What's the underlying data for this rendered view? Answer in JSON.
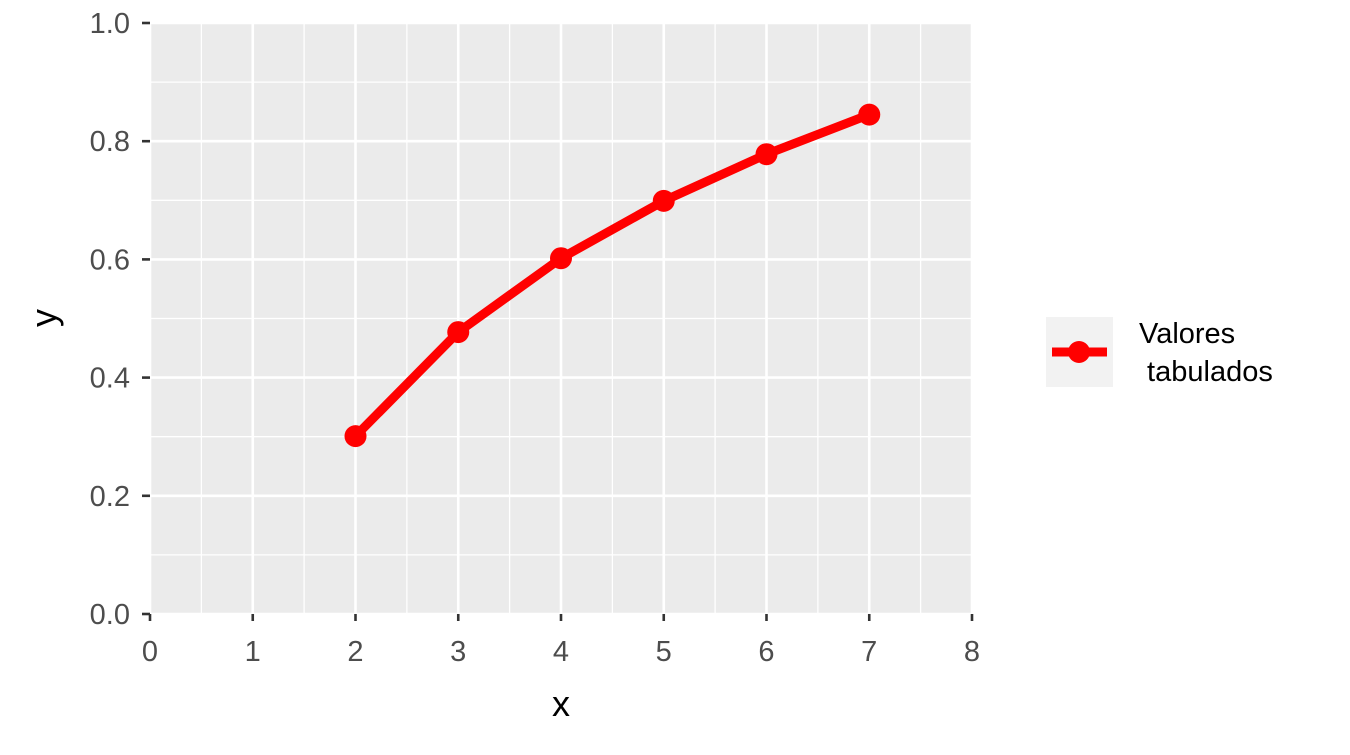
{
  "chart_data": {
    "type": "line",
    "xlabel": "x",
    "ylabel": "y",
    "xlim": [
      0,
      8
    ],
    "ylim": [
      0,
      1
    ],
    "x_ticks": [
      0,
      1,
      2,
      3,
      4,
      5,
      6,
      7,
      8
    ],
    "y_ticks": [
      0.0,
      0.2,
      0.4,
      0.6,
      0.8,
      1.0
    ],
    "x_tick_labels": [
      "0",
      "1",
      "2",
      "3",
      "4",
      "5",
      "6",
      "7",
      "8"
    ],
    "y_tick_labels": [
      "0.0",
      "0.2",
      "0.4",
      "0.6",
      "0.8",
      "1.0"
    ],
    "grid": true,
    "legend_position": "right",
    "series": [
      {
        "name": "Valores\n tabulados",
        "color": "#FF0000",
        "x": [
          2,
          3,
          4,
          5,
          6,
          7
        ],
        "y": [
          0.301,
          0.477,
          0.602,
          0.699,
          0.778,
          0.845
        ]
      }
    ]
  },
  "colors": {
    "panel_background": "#EBEBEB",
    "grid_major": "#FFFFFF",
    "series": "#FF0000",
    "tick_text": "#4D4D4D",
    "axis_text": "#000000"
  }
}
